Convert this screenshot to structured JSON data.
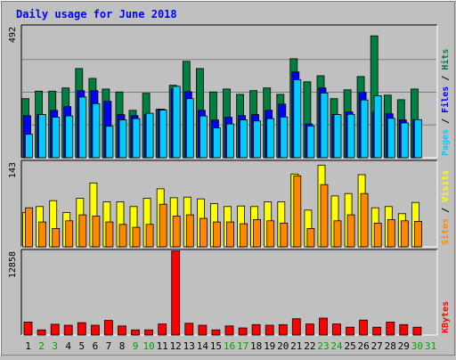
{
  "chart_data": {
    "type": "bar",
    "title": "Daily usage for June 2018",
    "days": [
      "1",
      "2",
      "3",
      "4",
      "5",
      "6",
      "7",
      "8",
      "9",
      "10",
      "11",
      "12",
      "13",
      "14",
      "15",
      "16",
      "17",
      "18",
      "19",
      "20",
      "21",
      "22",
      "23",
      "24",
      "25",
      "26",
      "27",
      "28",
      "29",
      "30",
      "31"
    ],
    "weekend_days": [
      "2",
      "3",
      "9",
      "10",
      "16",
      "17",
      "23",
      "24",
      "30",
      "31"
    ],
    "panels": [
      {
        "id": "top",
        "max_label": "492",
        "ymax": 492,
        "series": [
          {
            "name": "Hits",
            "color": "#008040",
            "values": [
              222,
              250,
              250,
              262,
              335,
              298,
              258,
              247,
              178,
              242,
              182,
              272,
              362,
              335,
              247,
              258,
              238,
              252,
              262,
              238,
              372,
              285,
              308,
              222,
              255,
              305,
              458,
              235,
              218,
              258,
              0
            ]
          },
          {
            "name": "Files",
            "color": "#0000ff",
            "values": [
              158,
              162,
              178,
              192,
              252,
              252,
              212,
              162,
              158,
              162,
              182,
              258,
              248,
              178,
              142,
              152,
              158,
              162,
              178,
              201,
              322,
              127,
              262,
              162,
              172,
              245,
              172,
              165,
              142,
              142,
              0
            ]
          },
          {
            "name": "Pages",
            "color": "#00ccff",
            "values": [
              88,
              162,
              152,
              157,
              228,
              203,
              118,
              142,
              147,
              167,
              179,
              268,
              222,
              157,
              112,
              127,
              142,
              138,
              147,
              153,
              293,
              119,
              243,
              162,
              163,
              217,
              233,
              148,
              131,
              143,
              0
            ]
          }
        ],
        "axis_labels": [
          {
            "text": "Pages",
            "color": "#00ccff"
          },
          {
            "text": " / ",
            "color": "#000000"
          },
          {
            "text": "Files",
            "color": "#0000ff"
          },
          {
            "text": " / ",
            "color": "#000000"
          },
          {
            "text": "Hits",
            "color": "#008040"
          }
        ]
      },
      {
        "id": "middle",
        "max_label": "143",
        "ymax": 143,
        "series": [
          {
            "name": "Visits",
            "color": "#ffff00",
            "values": [
              58,
              68,
              78,
              58,
              82,
              108,
              76,
              76,
              68,
              82,
              98,
              83,
              84,
              81,
              73,
              68,
              69,
              68,
              76,
              76,
              123,
              62,
              138,
              86,
              90,
              122,
              66,
              68,
              56,
              75,
              0
            ]
          },
          {
            "name": "Sites",
            "color": "#ff8800",
            "values": [
              66,
              42,
              31,
              44,
              54,
              52,
              42,
              38,
              33,
              38,
              72,
              52,
              54,
              48,
              42,
              42,
              39,
              46,
              44,
              40,
              120,
              31,
              105,
              44,
              54,
              90,
              40,
              46,
              44,
              43,
              0
            ]
          }
        ],
        "axis_labels": [
          {
            "text": "Sites",
            "color": "#ff8800"
          },
          {
            "text": " / ",
            "color": "#000000"
          },
          {
            "text": "Visits",
            "color": "#ffff00"
          }
        ]
      },
      {
        "id": "bottom",
        "max_label": "12858",
        "ymax": 12858,
        "series": [
          {
            "name": "KBytes",
            "color": "#ff0000",
            "values": [
              2000,
              800,
              1650,
              1500,
              1900,
              1500,
              2250,
              1400,
              800,
              800,
              1700,
              12900,
              1800,
              1500,
              800,
              1400,
              1100,
              1600,
              1500,
              1600,
              2500,
              1700,
              2600,
              1700,
              1200,
              2300,
              1200,
              2000,
              1600,
              1200,
              0
            ]
          }
        ],
        "axis_labels": [
          {
            "text": "KBytes",
            "color": "#ff0000"
          }
        ]
      }
    ]
  },
  "colors": {
    "title": "#0000ff",
    "background": "#c0c0c0",
    "plot_background": "#c0c0c0",
    "weekday_label": "#000000",
    "weekend_label": "#00a000"
  }
}
